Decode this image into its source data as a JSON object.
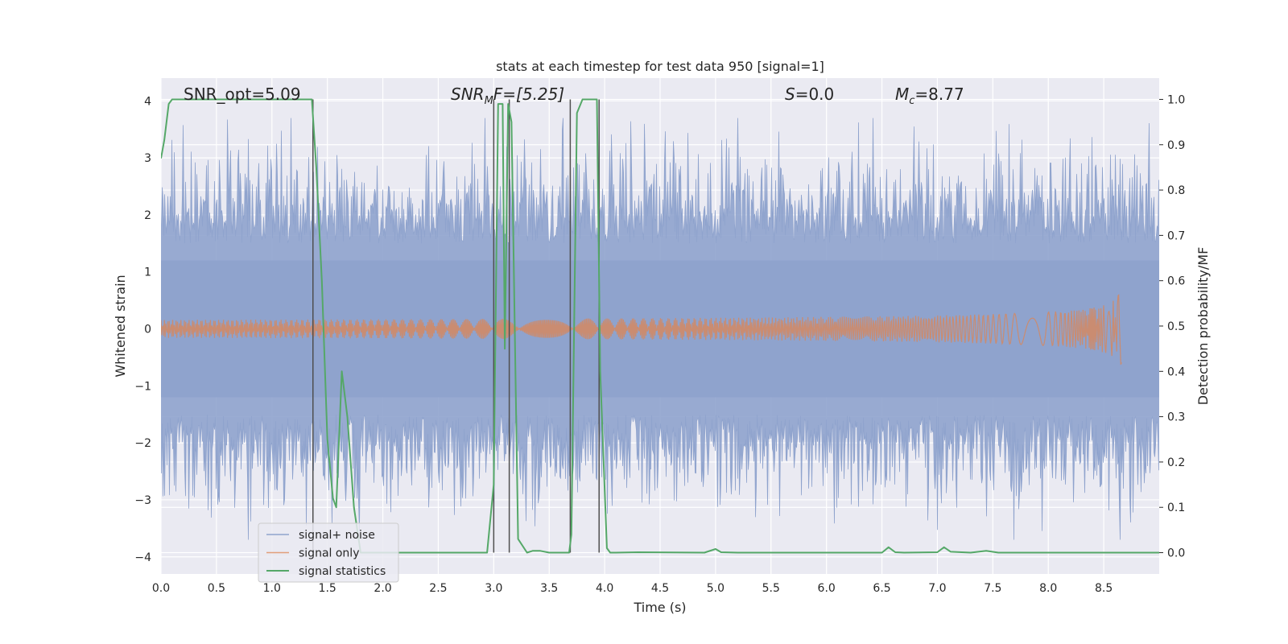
{
  "chart_data": {
    "type": "line",
    "title": "stats at each timestep for test data 950 [signal=1]",
    "xlabel": "Time (s)",
    "ylabel": "Whitened strain",
    "y2label": "Detection probability/MF",
    "xlim": [
      0.0,
      9.0
    ],
    "ylim": [
      -4.3,
      4.4
    ],
    "y2lim": [
      -0.047,
      1.047
    ],
    "xticks": [
      "0.0",
      "0.5",
      "1.0",
      "1.5",
      "2.0",
      "2.5",
      "3.0",
      "3.5",
      "4.0",
      "4.5",
      "5.0",
      "5.5",
      "6.0",
      "6.5",
      "7.0",
      "7.5",
      "8.0",
      "8.5"
    ],
    "yticks": [
      "4",
      "3",
      "2",
      "1",
      "0",
      "−1",
      "−2",
      "−3",
      "−4"
    ],
    "y2ticks": [
      "1.0",
      "0.9",
      "0.8",
      "0.7",
      "0.6",
      "0.5",
      "0.4",
      "0.3",
      "0.2",
      "0.1",
      "0.0"
    ],
    "grid": true,
    "legend_position": "lower-left",
    "annotations": {
      "snr_opt": "SNR_opt=5.09",
      "snr_mf_main": "SNR",
      "snr_mf_sub": "M",
      "snr_mf_rest": "F=[5.25]",
      "s_main": "S",
      "s_rest": "=0.0",
      "mc_main": "M",
      "mc_sub": "c",
      "mc_rest": "=8.77"
    },
    "vertical_lines_x": [
      1.37,
      3.0,
      3.14,
      3.69,
      3.95
    ],
    "series": [
      {
        "name": "signal+ noise",
        "color": "#8fa3cd",
        "axis": "left",
        "description_values": "whitened noise band, sigma ~1, extremes near +/-3.5"
      },
      {
        "name": "signal only",
        "color": "#dd8452",
        "axis": "left",
        "chirp_end_x": 8.66,
        "chirp_peak_amplitude": 0.77
      },
      {
        "name": "signal statistics",
        "color": "#55a868",
        "axis": "right",
        "x": [
          0.0,
          0.03,
          0.07,
          0.1,
          0.2,
          0.5,
          1.0,
          1.36,
          1.4,
          1.45,
          1.5,
          1.55,
          1.58,
          1.63,
          1.68,
          1.74,
          1.8,
          2.0,
          2.5,
          2.94,
          3.0,
          3.04,
          3.08,
          3.1,
          3.13,
          3.16,
          3.22,
          3.3,
          3.35,
          3.42,
          3.5,
          3.68,
          3.7,
          3.75,
          3.8,
          3.93,
          3.96,
          4.02,
          4.05,
          4.1,
          4.3,
          4.9,
          5.0,
          5.05,
          5.2,
          5.5,
          6.5,
          6.56,
          6.62,
          6.7,
          7.0,
          7.06,
          7.12,
          7.3,
          7.44,
          7.55,
          8.0,
          9.0
        ],
        "values": [
          0.87,
          0.91,
          0.99,
          1.0,
          1.0,
          1.0,
          1.0,
          1.0,
          0.85,
          0.6,
          0.25,
          0.12,
          0.1,
          0.4,
          0.3,
          0.1,
          0.0,
          0.0,
          0.0,
          0.0,
          0.15,
          0.99,
          0.99,
          0.45,
          0.99,
          0.95,
          0.03,
          0.0,
          0.004,
          0.004,
          0.0,
          0.0,
          0.04,
          0.97,
          1.0,
          1.0,
          0.4,
          0.01,
          0.0,
          0.0,
          0.001,
          0.0,
          0.008,
          0.001,
          0.0,
          0.0,
          0.0,
          0.012,
          0.001,
          0.0,
          0.001,
          0.012,
          0.002,
          0.0,
          0.004,
          0.0,
          0.0,
          0.0
        ]
      }
    ]
  }
}
